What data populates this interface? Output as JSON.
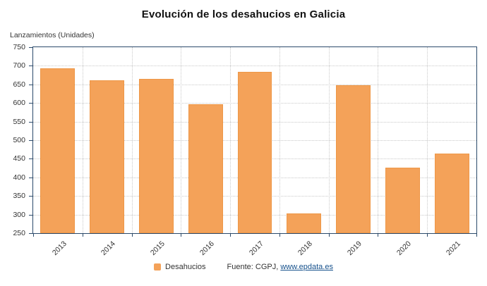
{
  "title": "Evolución de los desahucios en Galicia",
  "axis_title": "Lanzamientos (Unidades)",
  "legend": {
    "label": "Desahucios",
    "color": "#F4A259"
  },
  "source": {
    "prefix": "Fuente: CGPJ, ",
    "link_text": "www.epdata.es"
  },
  "colors": {
    "bar_fill": "#F4A259",
    "bar_border": "#EE9747",
    "axis_border": "#2b4a6b",
    "gridline": "#c9c9c9"
  },
  "chart_data": {
    "type": "bar",
    "title": "Evolución de los desahucios en Galicia",
    "categories": [
      "2013",
      "2014",
      "2015",
      "2016",
      "2017",
      "2018",
      "2019",
      "2020",
      "2021"
    ],
    "values": [
      693,
      661,
      665,
      597,
      683,
      303,
      648,
      426,
      464
    ],
    "series_name": "Desahucios",
    "xlabel": "",
    "ylabel": "Lanzamientos (Unidades)",
    "ylim": [
      250,
      750
    ],
    "ytick_step": 50,
    "grid": true,
    "legend_position": "bottom",
    "bar_width_fraction": 0.7
  }
}
